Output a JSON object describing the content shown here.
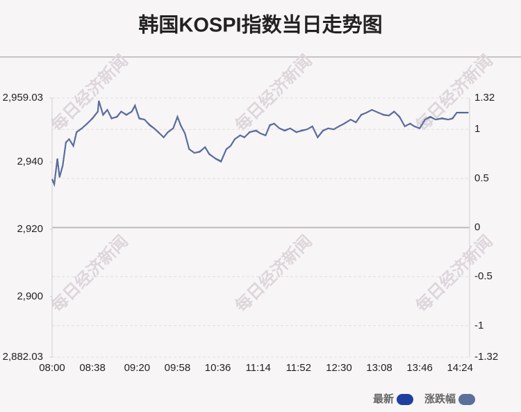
{
  "chart_data": {
    "type": "line",
    "title": "韩国KOSPI指数当日走势图",
    "watermark": "每日经济新闻",
    "x": [
      "08:00",
      "08:02",
      "08:05",
      "08:07",
      "08:10",
      "08:13",
      "08:16",
      "08:20",
      "08:23",
      "08:28",
      "08:33",
      "08:38",
      "08:43",
      "08:44",
      "08:48",
      "08:52",
      "08:56",
      "09:01",
      "09:05",
      "09:10",
      "09:15",
      "09:18",
      "09:22",
      "09:27",
      "09:32",
      "09:36",
      "09:40",
      "09:45",
      "09:49",
      "09:54",
      "09:58",
      "10:01",
      "10:05",
      "10:09",
      "10:14",
      "10:19",
      "10:24",
      "10:28",
      "10:34",
      "10:39",
      "10:44",
      "10:48",
      "10:52",
      "10:57",
      "11:01",
      "11:06",
      "11:12",
      "11:16",
      "11:21",
      "11:25",
      "11:29",
      "11:34",
      "11:39",
      "11:44",
      "11:50",
      "11:55",
      "12:00",
      "12:05",
      "12:10",
      "12:15",
      "12:20",
      "12:25",
      "12:30",
      "12:35",
      "12:41",
      "12:46",
      "12:51",
      "12:56",
      "13:01",
      "13:07",
      "13:12",
      "13:17",
      "13:22",
      "13:27",
      "13:32",
      "13:37",
      "13:41",
      "13:46",
      "13:51",
      "13:56",
      "14:01",
      "14:07",
      "14:13",
      "14:17",
      "14:21",
      "14:32"
    ],
    "series": [
      {
        "name": "最新",
        "color": "#1f3fa0",
        "values": [
          2934.9,
          2933.4,
          2941,
          2935.5,
          2939,
          2945.8,
          2946.8,
          2944.8,
          2948.9,
          2950,
          2951.4,
          2953,
          2955,
          2958.2,
          2954,
          2955.5,
          2953,
          2953.4,
          2955,
          2954,
          2955,
          2956.8,
          2953,
          2952.6,
          2951,
          2950,
          2948.9,
          2947.3,
          2948.9,
          2950,
          2953.4,
          2951,
          2948.5,
          2943.8,
          2942.7,
          2943.1,
          2944.4,
          2942.3,
          2941,
          2940.2,
          2943.8,
          2944.8,
          2946.8,
          2947.9,
          2947.3,
          2948.9,
          2949.3,
          2948.5,
          2947.9,
          2951,
          2951.4,
          2950,
          2949.3,
          2950,
          2948.9,
          2949.3,
          2949.7,
          2950.6,
          2947.3,
          2949.3,
          2950,
          2949.7,
          2950.6,
          2951.4,
          2952.6,
          2951.8,
          2954,
          2954.7,
          2955.5,
          2954.7,
          2954,
          2953.8,
          2955,
          2953.4,
          2950.6,
          2951.4,
          2950.6,
          2950,
          2952.6,
          2953.4,
          2952.6,
          2953,
          2952.6,
          2953,
          2954.7,
          2954.7
        ]
      },
      {
        "name": "涨跌幅",
        "color": "#5b6f9b",
        "axis": "y2",
        "values": [
          0.49,
          0.44,
          0.7,
          0.51,
          0.63,
          0.87,
          0.9,
          0.83,
          0.97,
          1.01,
          1.06,
          1.11,
          1.18,
          1.29,
          1.15,
          1.2,
          1.11,
          1.13,
          1.18,
          1.15,
          1.18,
          1.24,
          1.11,
          1.1,
          1.04,
          1.01,
          0.97,
          0.92,
          0.97,
          1.01,
          1.13,
          1.04,
          0.96,
          0.8,
          0.76,
          0.77,
          0.82,
          0.75,
          0.7,
          0.67,
          0.8,
          0.83,
          0.9,
          0.94,
          0.92,
          0.97,
          0.99,
          0.96,
          0.94,
          1.04,
          1.06,
          1.01,
          0.99,
          1.01,
          0.97,
          0.99,
          1.0,
          1.03,
          0.92,
          0.99,
          1.01,
          1.0,
          1.03,
          1.06,
          1.1,
          1.07,
          1.15,
          1.17,
          1.2,
          1.17,
          1.15,
          1.14,
          1.18,
          1.13,
          1.03,
          1.06,
          1.03,
          1.01,
          1.1,
          1.13,
          1.1,
          1.11,
          1.1,
          1.11,
          1.17,
          1.17
        ]
      }
    ],
    "xlim": [
      "08:00",
      "14:33"
    ],
    "xticks": [
      "08:00",
      "08:38",
      "09:20",
      "09:58",
      "10:36",
      "11:14",
      "11:52",
      "12:30",
      "13:08",
      "13:46",
      "14:24"
    ],
    "ylim": [
      2882.03,
      2959.03
    ],
    "yticks": [
      {
        "value": 2959.03,
        "label": "2,959.03"
      },
      {
        "value": 2940,
        "label": "2,940"
      },
      {
        "value": 2920,
        "label": "2,920"
      },
      {
        "value": 2900,
        "label": "2,900"
      },
      {
        "value": 2882.03,
        "label": "2,882.03"
      }
    ],
    "y2lim": [
      -1.32,
      1.32
    ],
    "y2ticks": [
      1.32,
      1,
      0.5,
      0,
      -0.5,
      -1,
      -1.32
    ],
    "grid": true,
    "legend": "bottom-right"
  }
}
